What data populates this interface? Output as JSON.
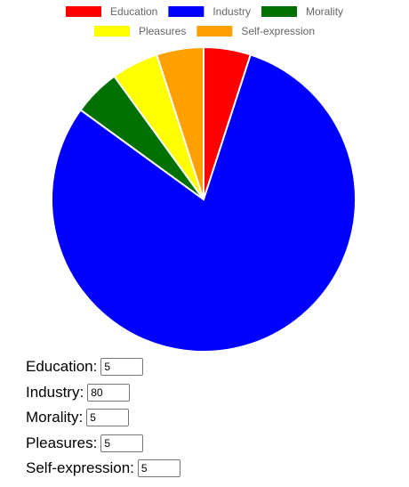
{
  "chart_data": {
    "type": "pie",
    "categories": [
      "Education",
      "Industry",
      "Morality",
      "Pleasures",
      "Self-expression"
    ],
    "values": [
      5,
      80,
      5,
      5,
      5
    ],
    "colors": [
      "#ff0000",
      "#0000ff",
      "#007000",
      "#ffff00",
      "#ffa000"
    ],
    "legend": "top",
    "title": ""
  },
  "form": {
    "fields": [
      {
        "label": "Education:",
        "value": "5"
      },
      {
        "label": "Industry:",
        "value": "80"
      },
      {
        "label": "Morality:",
        "value": "5"
      },
      {
        "label": "Pleasures:",
        "value": "5"
      },
      {
        "label": "Self-expression:",
        "value": "5"
      }
    ]
  }
}
